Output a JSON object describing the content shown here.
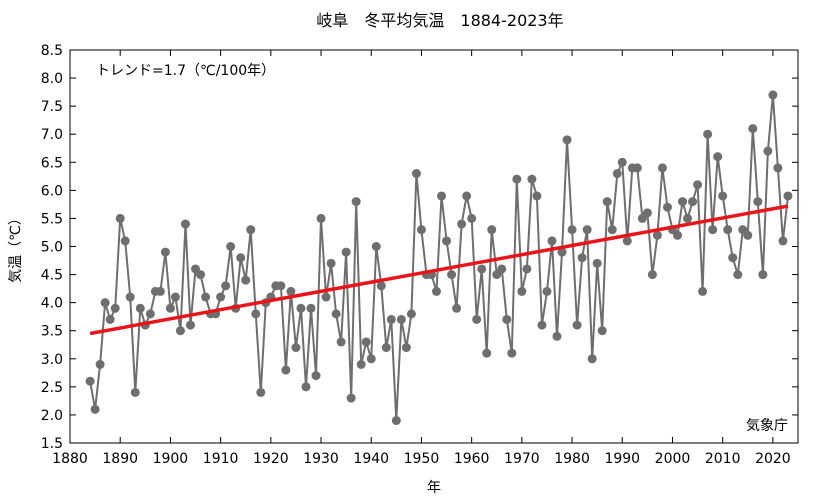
{
  "chart_data": {
    "type": "line",
    "title": "岐阜　冬平均気温　1884-2023年",
    "xlabel": "年",
    "ylabel": "気温（℃）",
    "trend_label": "トレンド=1.7（℃/100年）",
    "source": "気象庁",
    "xlim": [
      1880,
      2025
    ],
    "ylim": [
      1.5,
      8.5
    ],
    "x_ticks": [
      "1880",
      "1890",
      "1900",
      "1910",
      "1920",
      "1930",
      "1940",
      "1950",
      "1960",
      "1970",
      "1980",
      "1990",
      "2000",
      "2010",
      "2020"
    ],
    "y_ticks": [
      "1.5",
      "2.0",
      "2.5",
      "3.0",
      "3.5",
      "4.0",
      "4.5",
      "5.0",
      "5.5",
      "6.0",
      "6.5",
      "7.0",
      "7.5",
      "8.0",
      "8.5"
    ],
    "grid": false,
    "colors": {
      "series": "#6e6e6e",
      "trend": "#e8141a",
      "axis": "#000000"
    },
    "series": [
      {
        "x": [
          1884,
          1885,
          1886,
          1887,
          1888,
          1889,
          1890,
          1891,
          1892,
          1893,
          1894,
          1895,
          1896,
          1897,
          1898,
          1899,
          1900,
          1901,
          1902,
          1903,
          1904,
          1905,
          1906,
          1907,
          1908,
          1909,
          1910,
          1911,
          1912,
          1913,
          1914,
          1915,
          1916,
          1917,
          1918,
          1919,
          1920,
          1921,
          1922,
          1923,
          1924,
          1925,
          1926,
          1927,
          1928,
          1929,
          1930,
          1931,
          1932,
          1933,
          1934,
          1935,
          1936,
          1937,
          1938,
          1939,
          1940,
          1941,
          1942,
          1943,
          1944,
          1945,
          1946,
          1947,
          1948,
          1949,
          1950,
          1951,
          1952,
          1953,
          1954,
          1955,
          1956,
          1957,
          1958,
          1959,
          1960,
          1961,
          1962,
          1963,
          1964,
          1965,
          1966,
          1967,
          1968,
          1969,
          1970,
          1971,
          1972,
          1973,
          1974,
          1975,
          1976,
          1977,
          1978,
          1979,
          1980,
          1981,
          1982,
          1983,
          1984,
          1985,
          1986,
          1987,
          1988,
          1989,
          1990,
          1991,
          1992,
          1993,
          1994,
          1995,
          1996,
          1997,
          1998,
          1999,
          2000,
          2001,
          2002,
          2003,
          2004,
          2005,
          2006,
          2007,
          2008,
          2009,
          2010,
          2011,
          2012,
          2013,
          2014,
          2015,
          2016,
          2017,
          2018,
          2019,
          2020,
          2021,
          2022,
          2023
        ],
        "values": [
          2.6,
          2.1,
          2.9,
          4.0,
          3.7,
          3.9,
          5.5,
          5.1,
          4.1,
          2.4,
          3.9,
          3.6,
          3.8,
          4.2,
          4.2,
          4.9,
          3.9,
          4.1,
          3.5,
          5.4,
          3.6,
          4.6,
          4.5,
          4.1,
          3.8,
          3.8,
          4.1,
          4.3,
          5.0,
          3.9,
          4.8,
          4.4,
          5.3,
          3.8,
          2.4,
          4.0,
          4.1,
          4.3,
          4.3,
          2.8,
          4.2,
          3.2,
          3.9,
          2.5,
          3.9,
          2.7,
          5.5,
          4.1,
          4.7,
          3.8,
          3.3,
          4.9,
          2.3,
          5.8,
          2.9,
          3.3,
          3.0,
          5.0,
          4.3,
          3.2,
          3.7,
          1.9,
          3.7,
          3.2,
          3.8,
          6.3,
          5.3,
          4.5,
          4.5,
          4.2,
          5.9,
          5.1,
          4.5,
          3.9,
          5.4,
          5.9,
          5.5,
          3.7,
          4.6,
          3.1,
          5.3,
          4.5,
          4.6,
          3.7,
          3.1,
          6.2,
          4.2,
          4.6,
          6.2,
          5.9,
          3.6,
          4.2,
          5.1,
          3.4,
          4.9,
          6.9,
          5.3,
          3.6,
          4.8,
          5.3,
          3.0,
          4.7,
          3.5,
          5.8,
          5.3,
          6.3,
          6.5,
          5.1,
          6.4,
          6.4,
          5.5,
          5.6,
          4.5,
          5.2,
          6.4,
          5.7,
          5.3,
          5.2,
          5.8,
          5.5,
          5.8,
          6.1,
          4.2,
          7.0,
          5.3,
          6.6,
          5.9,
          5.3,
          4.8,
          4.5,
          5.3,
          5.2,
          7.1,
          5.8,
          4.5,
          6.7,
          7.7,
          6.4,
          5.1,
          5.9
        ]
      }
    ],
    "trend": {
      "x": [
        1884,
        2023
      ],
      "values": [
        3.45,
        5.72
      ]
    }
  }
}
